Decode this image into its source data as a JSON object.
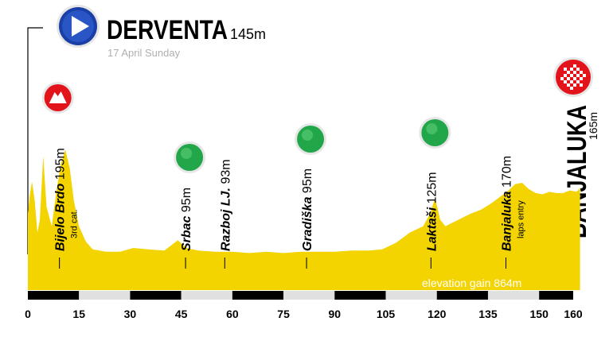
{
  "stage": {
    "start_name": "DERVENTA",
    "start_elevation": "145m",
    "date": "17 April Sunday",
    "finish_name": "BANJALUKA",
    "finish_elevation": "165m"
  },
  "chart_data": {
    "type": "area",
    "x_unit": "km",
    "xlim": [
      0,
      162
    ],
    "ticks": [
      0,
      15,
      30,
      45,
      60,
      75,
      90,
      105,
      120,
      135,
      150,
      160
    ],
    "tick_labels": [
      "0",
      "15",
      "30",
      "45",
      "60",
      "75",
      "90",
      "105",
      "120",
      "135",
      "150",
      "160"
    ],
    "profile": {
      "x": [
        0,
        0.6,
        1.2,
        2,
        2.8,
        3.5,
        4.5,
        5.5,
        7,
        8.5,
        9.8,
        11,
        12.3,
        13.5,
        15,
        17,
        19,
        23,
        27,
        31,
        35,
        40,
        44,
        46.5,
        50,
        55,
        60,
        65,
        70,
        75,
        80,
        85,
        90,
        95,
        100,
        104,
        108,
        112,
        116,
        118,
        119.5,
        121,
        122.5,
        124,
        127,
        130,
        133,
        136,
        139,
        141,
        143,
        145,
        147,
        149,
        151,
        153,
        155,
        157,
        159,
        161,
        162
      ],
      "y": [
        160,
        175,
        185,
        170,
        145,
        155,
        205,
        165,
        150,
        180,
        200,
        210,
        195,
        170,
        150,
        138,
        132,
        130,
        130,
        133,
        132,
        131,
        139,
        133,
        131,
        130,
        130,
        129,
        130,
        129,
        130,
        130,
        130,
        131,
        131,
        132,
        137,
        145,
        150,
        160,
        172,
        155,
        150,
        152,
        156,
        160,
        163,
        168,
        174,
        178,
        183,
        184,
        179,
        176,
        175,
        177,
        176,
        176,
        178,
        177,
        180
      ]
    },
    "ylim": [
      100,
      240
    ],
    "points": [
      {
        "name": "Bijelo Brdo",
        "elevation": "195m",
        "km": 9.5,
        "note": "3rd cat.",
        "marker": "mountain"
      },
      {
        "name": "Srbac",
        "elevation": "95m",
        "km": 46.5,
        "note": "",
        "marker": "green"
      },
      {
        "name": "Razboj LJ.",
        "elevation": "93m",
        "km": 58,
        "note": "",
        "marker": "none"
      },
      {
        "name": "Gradiška",
        "elevation": "95m",
        "km": 82,
        "note": "",
        "marker": "green"
      },
      {
        "name": "Laktaši",
        "elevation": "125m",
        "km": 118.5,
        "note": "",
        "marker": "green"
      },
      {
        "name": "Banjaluka",
        "elevation": "170m",
        "km": 140.5,
        "note": "laps entry",
        "marker": "none"
      }
    ],
    "annotation": "elevation gain 864m",
    "colors": {
      "fill": "#f3d400",
      "green": "#22a64a",
      "red": "#e3131b",
      "bar_dark": "#000000",
      "bar_light": "#e0e0e0",
      "start_blue": "#1a3fa6"
    }
  }
}
